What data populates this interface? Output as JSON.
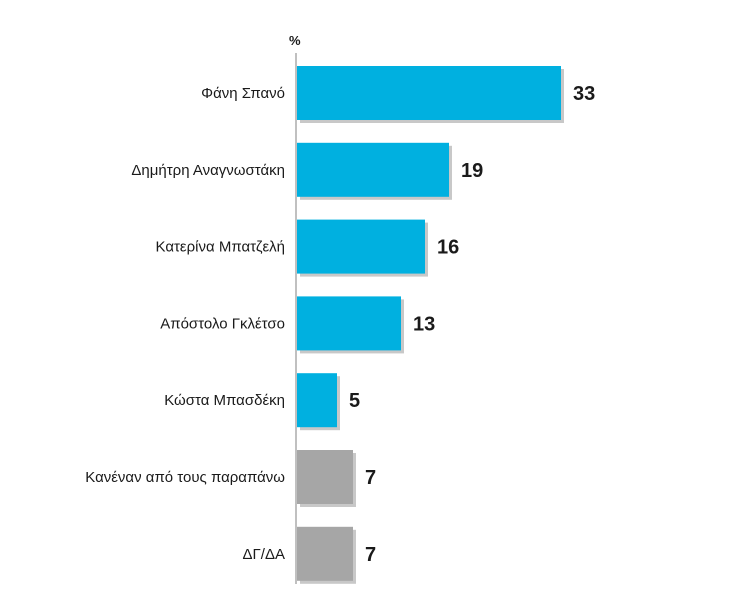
{
  "chart_data": {
    "type": "bar",
    "orientation": "horizontal",
    "unit_label": "%",
    "categories": [
      "Φάνη Σπανό",
      "Δημήτρη Αναγνωστάκη",
      "Κατερίνα Μπατζελή",
      "Απόστολο Γκλέτσο",
      "Κώστα Μπασδέκη",
      "Κανέναν από τους παραπάνω",
      "ΔΓ/ΔΑ"
    ],
    "values": [
      33,
      19,
      16,
      13,
      5,
      7,
      7
    ],
    "value_labels": [
      "33",
      "19",
      "16",
      "13",
      "5",
      "7",
      "7"
    ],
    "bar_colors": [
      "#00b0e0",
      "#00b0e0",
      "#00b0e0",
      "#00b0e0",
      "#00b0e0",
      "#a6a6a6",
      "#a6a6a6"
    ],
    "axis_color": "#808080",
    "shadow_color": "#c8c8c8",
    "grid": false,
    "legend": "none"
  }
}
